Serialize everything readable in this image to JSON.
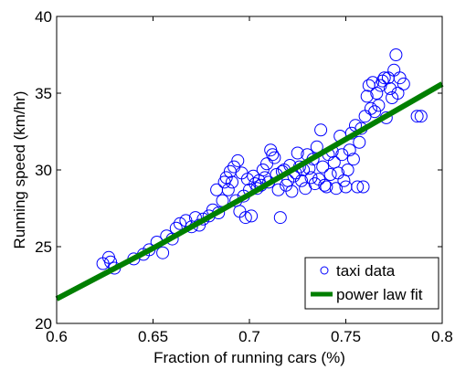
{
  "chart_data": {
    "type": "scatter",
    "title": "",
    "xlabel": "Fraction of running cars (%)",
    "ylabel": "Running speed (km/hr)",
    "xlim": [
      0.6,
      0.8
    ],
    "ylim": [
      20,
      40
    ],
    "xticks": [
      0.6,
      0.65,
      0.7,
      0.75,
      0.8
    ],
    "xtick_labels": [
      "0.6",
      "0.65",
      "0.7",
      "0.75",
      "0.8"
    ],
    "yticks": [
      20,
      25,
      30,
      35,
      40
    ],
    "ytick_labels": [
      "20",
      "25",
      "30",
      "35",
      "40"
    ],
    "grid": false,
    "legend_position": "bottom-right",
    "series": [
      {
        "name": "taxi data",
        "kind": "scatter",
        "marker": "circle-open",
        "color": "#0000ff",
        "points": [
          [
            0.624,
            23.9
          ],
          [
            0.627,
            24.3
          ],
          [
            0.628,
            24.0
          ],
          [
            0.63,
            23.6
          ],
          [
            0.64,
            24.2
          ],
          [
            0.645,
            24.5
          ],
          [
            0.648,
            24.8
          ],
          [
            0.652,
            25.3
          ],
          [
            0.655,
            24.6
          ],
          [
            0.657,
            25.7
          ],
          [
            0.66,
            25.5
          ],
          [
            0.662,
            26.2
          ],
          [
            0.664,
            26.5
          ],
          [
            0.667,
            26.7
          ],
          [
            0.67,
            26.3
          ],
          [
            0.672,
            26.9
          ],
          [
            0.674,
            26.4
          ],
          [
            0.676,
            26.8
          ],
          [
            0.679,
            27.0
          ],
          [
            0.681,
            27.4
          ],
          [
            0.683,
            28.7
          ],
          [
            0.684,
            27.2
          ],
          [
            0.686,
            28.0
          ],
          [
            0.687,
            29.2
          ],
          [
            0.688,
            29.5
          ],
          [
            0.689,
            28.7
          ],
          [
            0.69,
            29.9
          ],
          [
            0.691,
            29.2
          ],
          [
            0.692,
            30.2
          ],
          [
            0.693,
            28.0
          ],
          [
            0.694,
            30.6
          ],
          [
            0.695,
            27.3
          ],
          [
            0.696,
            29.8
          ],
          [
            0.697,
            28.3
          ],
          [
            0.698,
            26.9
          ],
          [
            0.699,
            29.4
          ],
          [
            0.7,
            28.7
          ],
          [
            0.701,
            27.0
          ],
          [
            0.702,
            29.6
          ],
          [
            0.703,
            29.1
          ],
          [
            0.704,
            28.8
          ],
          [
            0.705,
            29.3
          ],
          [
            0.706,
            29.0
          ],
          [
            0.707,
            30.0
          ],
          [
            0.708,
            29.5
          ],
          [
            0.709,
            30.4
          ],
          [
            0.71,
            29.2
          ],
          [
            0.711,
            31.3
          ],
          [
            0.712,
            31.0
          ],
          [
            0.713,
            30.8
          ],
          [
            0.714,
            29.7
          ],
          [
            0.715,
            28.7
          ],
          [
            0.716,
            26.9
          ],
          [
            0.717,
            29.9
          ],
          [
            0.718,
            30.0
          ],
          [
            0.719,
            29.0
          ],
          [
            0.72,
            29.3
          ],
          [
            0.721,
            30.3
          ],
          [
            0.722,
            28.6
          ],
          [
            0.723,
            29.6
          ],
          [
            0.724,
            29.8
          ],
          [
            0.725,
            31.1
          ],
          [
            0.726,
            30.2
          ],
          [
            0.727,
            29.3
          ],
          [
            0.728,
            30.0
          ],
          [
            0.729,
            28.8
          ],
          [
            0.73,
            31.0
          ],
          [
            0.731,
            30.1
          ],
          [
            0.732,
            29.5
          ],
          [
            0.733,
            30.7
          ],
          [
            0.734,
            29.1
          ],
          [
            0.735,
            31.5
          ],
          [
            0.736,
            29.4
          ],
          [
            0.737,
            32.6
          ],
          [
            0.738,
            30.2
          ],
          [
            0.739,
            29.0
          ],
          [
            0.74,
            28.9
          ],
          [
            0.741,
            31.0
          ],
          [
            0.742,
            29.7
          ],
          [
            0.743,
            31.2
          ],
          [
            0.744,
            30.5
          ],
          [
            0.745,
            28.8
          ],
          [
            0.746,
            29.8
          ],
          [
            0.747,
            32.2
          ],
          [
            0.748,
            31.0
          ],
          [
            0.749,
            29.3
          ],
          [
            0.75,
            28.9
          ],
          [
            0.751,
            30.0
          ],
          [
            0.752,
            31.3
          ],
          [
            0.753,
            32.4
          ],
          [
            0.754,
            30.7
          ],
          [
            0.755,
            32.9
          ],
          [
            0.756,
            28.9
          ],
          [
            0.757,
            31.8
          ],
          [
            0.758,
            32.7
          ],
          [
            0.759,
            28.9
          ],
          [
            0.76,
            33.5
          ],
          [
            0.761,
            34.8
          ],
          [
            0.762,
            35.5
          ],
          [
            0.763,
            34.0
          ],
          [
            0.764,
            35.7
          ],
          [
            0.765,
            33.8
          ],
          [
            0.766,
            35.0
          ],
          [
            0.767,
            34.2
          ],
          [
            0.768,
            35.5
          ],
          [
            0.769,
            35.8
          ],
          [
            0.77,
            36.0
          ],
          [
            0.771,
            33.4
          ],
          [
            0.772,
            36.0
          ],
          [
            0.773,
            35.3
          ],
          [
            0.774,
            34.7
          ],
          [
            0.775,
            36.5
          ],
          [
            0.776,
            37.5
          ],
          [
            0.777,
            35.0
          ],
          [
            0.778,
            36.0
          ],
          [
            0.78,
            35.6
          ],
          [
            0.787,
            33.5
          ],
          [
            0.789,
            33.5
          ]
        ]
      },
      {
        "name": "power law fit",
        "kind": "line",
        "color": "#007f00",
        "x": [
          0.6,
          0.65,
          0.7,
          0.75,
          0.8
        ],
        "y": [
          21.6,
          24.9,
          28.4,
          32.0,
          35.6
        ]
      }
    ]
  }
}
